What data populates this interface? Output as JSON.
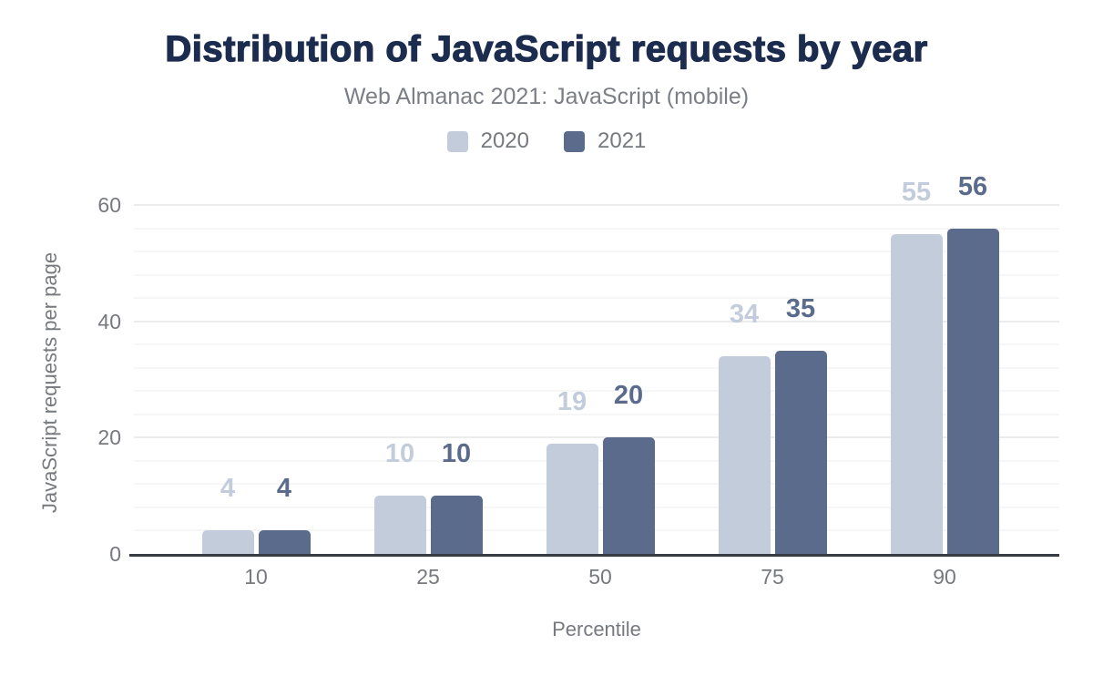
{
  "chart_data": {
    "type": "bar",
    "title": "Distribution of JavaScript requests by year",
    "subtitle": "Web Almanac 2021: JavaScript (mobile)",
    "xlabel": "Percentile",
    "ylabel": "JavaScript requests per page",
    "categories": [
      "10",
      "25",
      "50",
      "75",
      "90"
    ],
    "series": [
      {
        "name": "2020",
        "color": "#c3ccdb",
        "values": [
          4,
          10,
          19,
          34,
          55
        ]
      },
      {
        "name": "2021",
        "color": "#5a6b8c",
        "values": [
          4,
          10,
          20,
          35,
          56
        ]
      }
    ],
    "ylim": [
      0,
      60
    ],
    "yticks": [
      0,
      20,
      40,
      60
    ],
    "minor_grid_step": 4,
    "grid": "on",
    "legend_position": "top",
    "value_labels": "above-bars"
  },
  "colors": {
    "title_text": "#1c2c4f",
    "axis_text": "#76797e",
    "axis_line": "#363a43",
    "background": "#ffffff"
  }
}
